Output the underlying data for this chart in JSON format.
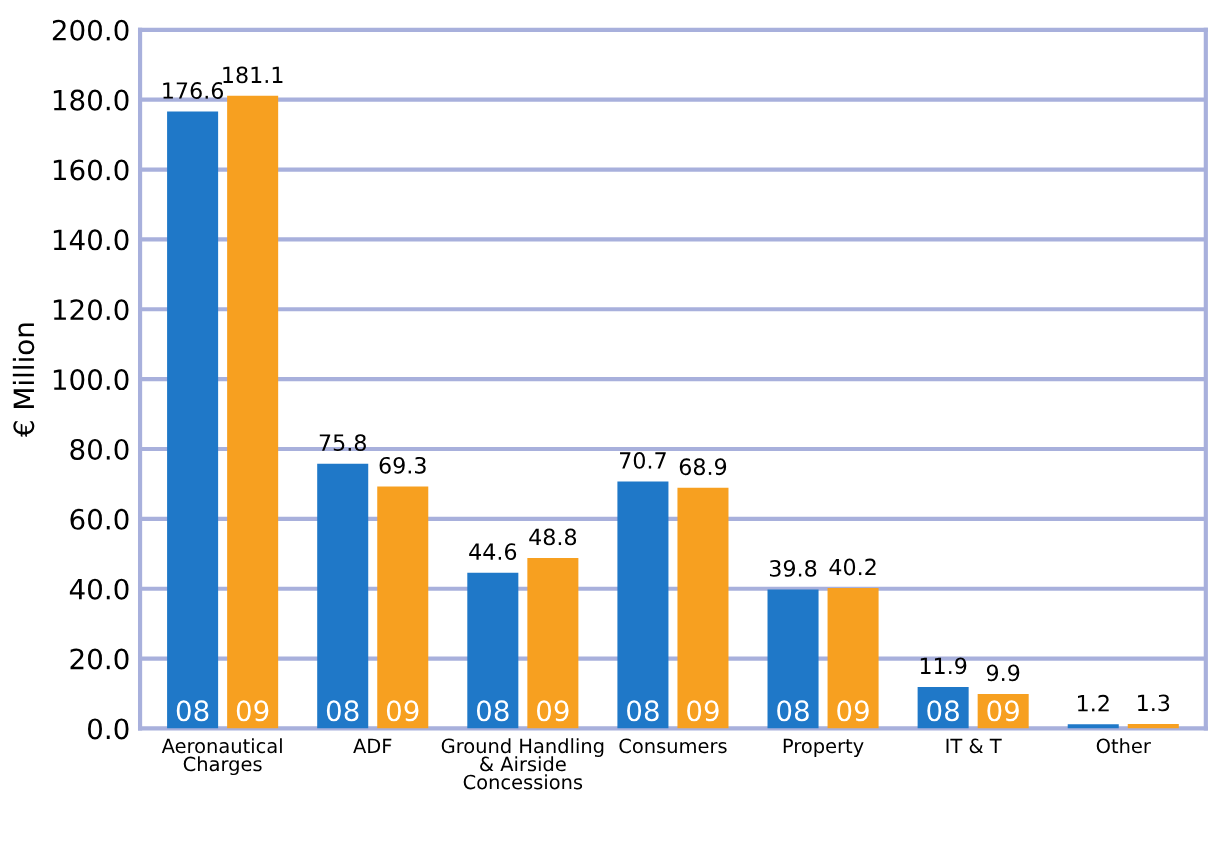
{
  "chart_data": {
    "type": "bar",
    "ylabel": "€ Million",
    "categories": [
      "Aeronautical\nCharges",
      "ADF",
      "Ground Handling\n& Airside\nConcessions",
      "Consumers",
      "Property",
      "IT & T",
      "Other"
    ],
    "series": [
      {
        "name": "08",
        "color": "#1f78c8",
        "values": [
          176.6,
          75.8,
          44.6,
          70.7,
          39.8,
          11.9,
          1.2
        ]
      },
      {
        "name": "09",
        "color": "#f7a020",
        "values": [
          181.1,
          69.3,
          48.8,
          68.9,
          40.2,
          9.9,
          1.3
        ]
      }
    ],
    "ylim": [
      0,
      200
    ],
    "yticks": [
      {
        "value": 0,
        "label": "0.0"
      },
      {
        "value": 20,
        "label": "20.0"
      },
      {
        "value": 40,
        "label": "40.0"
      },
      {
        "value": 60,
        "label": "60.0"
      },
      {
        "value": 80,
        "label": "80.0"
      },
      {
        "value": 100,
        "label": "100.0"
      },
      {
        "value": 120,
        "label": "120.0"
      },
      {
        "value": 140,
        "label": "140.0"
      },
      {
        "value": 160,
        "label": "160.0"
      },
      {
        "value": 180,
        "label": "180.0"
      },
      {
        "value": 200,
        "label": "200.0"
      }
    ],
    "grid": "y",
    "data_labels": true,
    "legend": false
  }
}
